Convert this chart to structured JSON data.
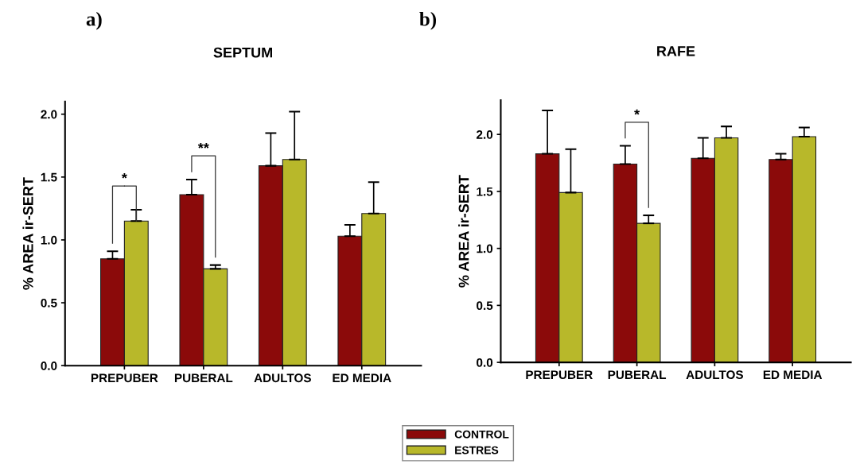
{
  "chart_data": [
    {
      "type": "bar",
      "title": "SEPTUM",
      "ylabel": "% AREA ir-SERT",
      "categories": [
        "PREPUBER",
        "PUBERAL",
        "ADULTOS",
        "ED MEDIA"
      ],
      "series": [
        {
          "name": "CONTROL",
          "color": "#8b0a0a",
          "values": [
            0.85,
            1.36,
            1.59,
            1.03
          ],
          "errors": [
            [
              0.85,
              0.91
            ],
            [
              1.36,
              1.48
            ],
            [
              1.59,
              1.85
            ],
            [
              1.03,
              1.12
            ]
          ]
        },
        {
          "name": "ESTRES",
          "color": "#b8b82a",
          "values": [
            1.15,
            0.77,
            1.64,
            1.21
          ],
          "errors": [
            [
              1.15,
              1.24
            ],
            [
              0.77,
              0.8
            ],
            [
              1.64,
              2.02
            ],
            [
              1.21,
              1.46
            ]
          ]
        }
      ],
      "ylim": [
        0,
        2.1
      ],
      "yticks": [
        {
          "value": 0,
          "label": "0.0"
        },
        {
          "value": 0.5,
          "label": "0.5"
        },
        {
          "value": 1,
          "label": "1.0"
        },
        {
          "value": 1.5,
          "label": "1.5"
        },
        {
          "value": 2,
          "label": "2.0"
        }
      ],
      "grid": false,
      "legend": "bottom",
      "annotations": [
        "a)",
        {
          "text": "*",
          "x": "PREPUBER",
          "y": 1.15
        },
        "**"
      ]
    },
    {
      "type": "bar",
      "title": "RAFE",
      "ylabel": "% AREA ir-SERT",
      "categories": [
        "PREPUBER",
        "PUBERAL",
        "ADULTOS",
        "ED MEDIA"
      ],
      "series": [
        {
          "name": "CONTROL",
          "color": "#8b0a0a",
          "values": [
            1.83,
            1.74,
            1.79,
            1.78
          ],
          "errors": [
            [
              1.83,
              2.21
            ],
            [
              1.74,
              1.9
            ],
            [
              1.79,
              1.97
            ],
            [
              1.78,
              1.83
            ]
          ]
        },
        {
          "name": "ESTRES",
          "color": "#b8b82a",
          "values": [
            1.49,
            1.22,
            1.97,
            1.98
          ],
          "errors": [
            [
              1.49,
              1.87
            ],
            [
              1.22,
              1.29
            ],
            [
              1.97,
              2.07
            ],
            [
              1.98,
              2.06
            ]
          ]
        }
      ],
      "ylim": [
        0,
        2.3
      ],
      "yticks": [
        {
          "value": 0,
          "label": "0.0"
        },
        {
          "value": 0.5,
          "label": "0.5"
        },
        {
          "value": 1,
          "label": "1.0"
        },
        {
          "value": 1.5,
          "label": "1.5"
        },
        {
          "value": 2,
          "label": "2.0"
        }
      ],
      "grid": false,
      "legend": "bottom",
      "annotations": [
        "b)",
        "*"
      ]
    }
  ]
}
